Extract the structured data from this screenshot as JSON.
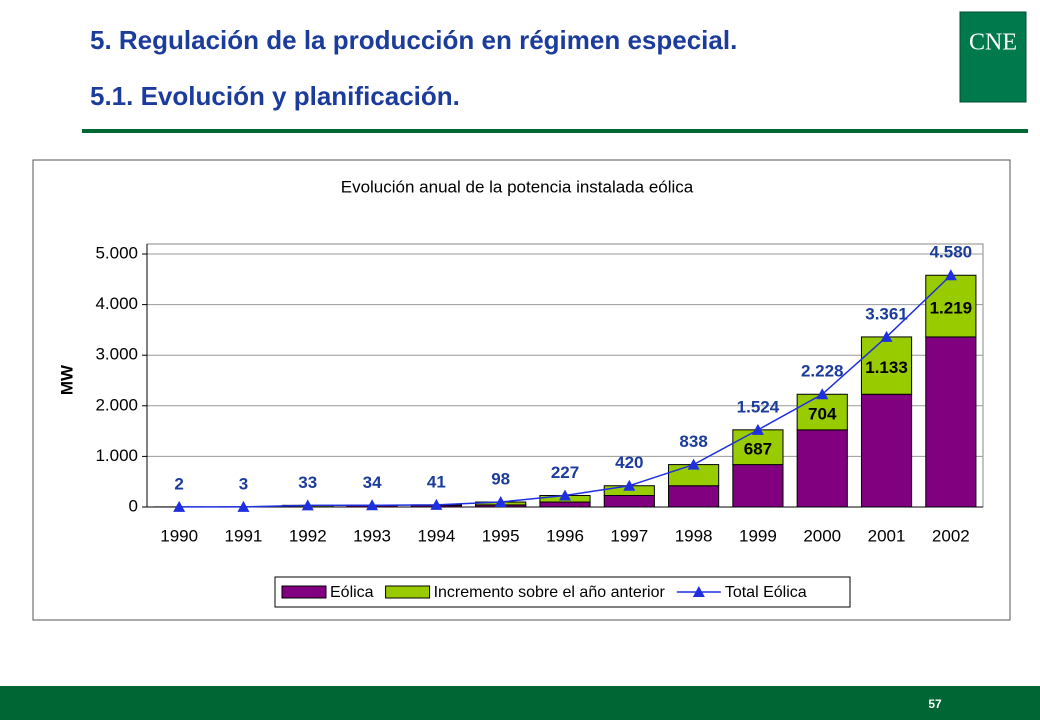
{
  "header": {
    "title": "5. Regulación de la producción en régimen especial.",
    "subtitle": "5.1. Evolución y planificación.",
    "logo": "CNE"
  },
  "page_number": "57",
  "chart_data": {
    "type": "bar",
    "title": "Evolución anual de la potencia instalada eólica",
    "y_label": "MW",
    "categories": [
      "1990",
      "1991",
      "1992",
      "1993",
      "1994",
      "1995",
      "1996",
      "1997",
      "1998",
      "1999",
      "2000",
      "2001",
      "2002"
    ],
    "stacked": true,
    "series": [
      {
        "name": "Eólica",
        "color": "#800080",
        "values": [
          0,
          2,
          3,
          33,
          34,
          41,
          98,
          227,
          420,
          838,
          1524,
          2228,
          3361
        ]
      },
      {
        "name": "Incremento sobre el año anterior",
        "color": "#99cc00",
        "values": [
          2,
          1,
          30,
          1,
          7,
          57,
          129,
          193,
          418,
          687,
          704,
          1133,
          1219
        ],
        "value_labels": [
          null,
          null,
          null,
          null,
          null,
          null,
          null,
          null,
          null,
          "687",
          "704",
          "1.133",
          "1.219"
        ]
      },
      {
        "name": "Total Eólica",
        "type": "line",
        "color": "#1f2fe0",
        "values": [
          2,
          3,
          33,
          34,
          41,
          98,
          227,
          420,
          838,
          1524,
          2228,
          3361,
          4580
        ],
        "value_labels": [
          "2",
          "3",
          "33",
          "34",
          "41",
          "98",
          "227",
          "420",
          "838",
          "1.524",
          "2.228",
          "3.361",
          "4.580"
        ]
      }
    ],
    "ylim": [
      0,
      5000
    ],
    "yticks": [
      0,
      {
        "value": 1000,
        "label": "1.000"
      },
      {
        "value": 2000,
        "label": "2.000"
      },
      {
        "value": 3000,
        "label": "3.000"
      },
      {
        "value": 4000,
        "label": "4.000"
      },
      {
        "value": 5000,
        "label": "5.000"
      }
    ],
    "legend": "bottom"
  }
}
